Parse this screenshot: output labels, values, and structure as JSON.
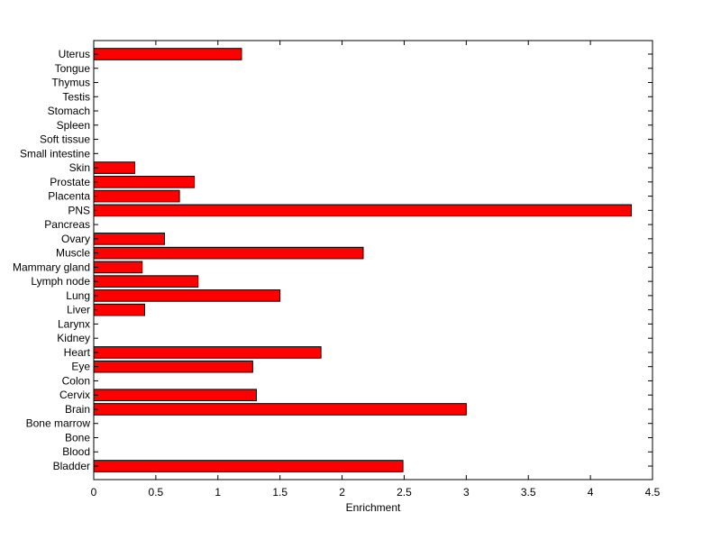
{
  "chart_data": {
    "type": "bar",
    "orientation": "horizontal",
    "title": "",
    "xlabel": "Enrichment",
    "ylabel": "",
    "xlim": [
      0,
      4.5
    ],
    "xticks": [
      "0",
      "0.5",
      "1",
      "1.5",
      "2",
      "2.5",
      "3",
      "3.5",
      "4",
      "4.5"
    ],
    "grid": false,
    "legend": "none",
    "bar_color": "#ff0000",
    "bar_edge_color": "#000000",
    "categories": [
      "Bladder",
      "Blood",
      "Bone",
      "Bone marrow",
      "Brain",
      "Cervix",
      "Colon",
      "Eye",
      "Heart",
      "Kidney",
      "Larynx",
      "Liver",
      "Lung",
      "Lymph node",
      "Mammary gland",
      "Muscle",
      "Ovary",
      "Pancreas",
      "PNS",
      "Placenta",
      "Prostate",
      "Skin",
      "Small intestine",
      "Soft tissue",
      "Spleen",
      "Stomach",
      "Testis",
      "Thymus",
      "Tongue",
      "Uterus"
    ],
    "values": [
      2.49,
      0,
      0,
      0,
      3.0,
      1.31,
      0,
      1.28,
      1.83,
      0,
      0,
      0.41,
      1.5,
      0.84,
      0.39,
      2.17,
      0.57,
      0,
      4.33,
      0.69,
      0.81,
      0.33,
      0,
      0,
      0,
      0,
      0,
      0,
      0,
      1.19
    ]
  }
}
